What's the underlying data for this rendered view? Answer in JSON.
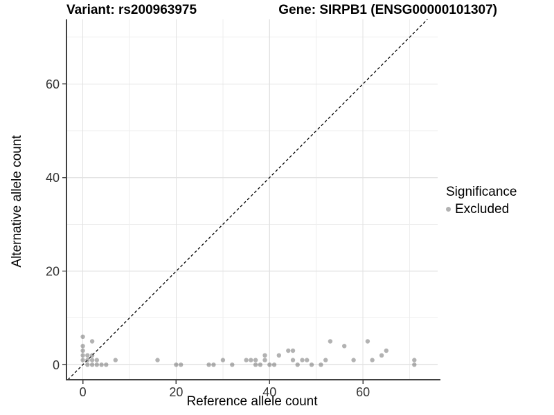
{
  "title": {
    "variant": "Variant: rs200963975",
    "gene": "Gene: SIRPB1 (ENSG00000101307)"
  },
  "chart_data": {
    "type": "scatter",
    "xlabel": "Reference allele count",
    "ylabel": "Alternative allele count",
    "x_ticks": [
      0,
      20,
      40,
      60
    ],
    "y_ticks": [
      0,
      20,
      40,
      60
    ],
    "x_minor_gridlines": [
      10,
      30,
      50,
      70
    ],
    "y_minor_gridlines": [
      10,
      30,
      50,
      70
    ],
    "xlim": [
      -3.5,
      76
    ],
    "ylim": [
      -3.2,
      73.8
    ],
    "grid": "on",
    "reference_line": {
      "type": "identity y=x",
      "style": "dashed",
      "color": "#000000"
    },
    "point_color": "#555555",
    "point_opacity": 0.45,
    "point_radius": 3.2,
    "series": [
      {
        "name": "Excluded",
        "points": [
          [
            0,
            6
          ],
          [
            2,
            5
          ],
          [
            0,
            4
          ],
          [
            0,
            3
          ],
          [
            0,
            2
          ],
          [
            1,
            2
          ],
          [
            2,
            2
          ],
          [
            0,
            1
          ],
          [
            1,
            1
          ],
          [
            2,
            1
          ],
          [
            3,
            1
          ],
          [
            1,
            0
          ],
          [
            2,
            0
          ],
          [
            3,
            0
          ],
          [
            4,
            0
          ],
          [
            5,
            0
          ],
          [
            7,
            1
          ],
          [
            16,
            1
          ],
          [
            20,
            0
          ],
          [
            21,
            0
          ],
          [
            27,
            0
          ],
          [
            28,
            0
          ],
          [
            30,
            1
          ],
          [
            32,
            0
          ],
          [
            35,
            1
          ],
          [
            36,
            1
          ],
          [
            37,
            1
          ],
          [
            37,
            0
          ],
          [
            38,
            0
          ],
          [
            39,
            2
          ],
          [
            39,
            1
          ],
          [
            40,
            0
          ],
          [
            41,
            0
          ],
          [
            42,
            2
          ],
          [
            44,
            3
          ],
          [
            45,
            3
          ],
          [
            45,
            1
          ],
          [
            46,
            0
          ],
          [
            47,
            1
          ],
          [
            48,
            1
          ],
          [
            49,
            0
          ],
          [
            51,
            0
          ],
          [
            52,
            1
          ],
          [
            53,
            5
          ],
          [
            56,
            4
          ],
          [
            58,
            1
          ],
          [
            61,
            5
          ],
          [
            62,
            1
          ],
          [
            64,
            2
          ],
          [
            65,
            3
          ],
          [
            71,
            1
          ],
          [
            71,
            0
          ]
        ]
      }
    ],
    "legend": {
      "title": "Significance",
      "position": "right",
      "items": [
        {
          "label": "Excluded",
          "color": "#b2b2b2"
        }
      ]
    },
    "colors": {
      "grid_major": "#e2e2e2",
      "grid_minor": "#eeeeee",
      "axis_line": "#404040",
      "tick_label": "#333333"
    }
  }
}
